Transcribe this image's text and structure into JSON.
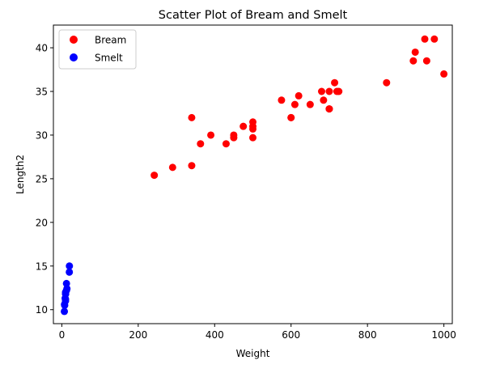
{
  "chart_data": {
    "type": "scatter",
    "title": "Scatter Plot of Bream and Smelt",
    "xlabel": "Weight",
    "ylabel": "Length2",
    "xlim": [
      -22,
      1022
    ],
    "ylim": [
      8.4,
      42.6
    ],
    "xticks": [
      0,
      200,
      400,
      600,
      800,
      1000
    ],
    "yticks": [
      10,
      15,
      20,
      25,
      30,
      35,
      40
    ],
    "grid": false,
    "legend_position": "top-left",
    "series": [
      {
        "name": "Bream",
        "color": "#ff0000",
        "points": [
          [
            242,
            25.4
          ],
          [
            290,
            26.3
          ],
          [
            340,
            26.5
          ],
          [
            363,
            29.0
          ],
          [
            430,
            29.0
          ],
          [
            450,
            29.7
          ],
          [
            500,
            29.7
          ],
          [
            390,
            30.0
          ],
          [
            450,
            30.0
          ],
          [
            500,
            30.7
          ],
          [
            475,
            31.0
          ],
          [
            500,
            31.0
          ],
          [
            500,
            31.5
          ],
          [
            340,
            32.0
          ],
          [
            600,
            32.0
          ],
          [
            600,
            32.0
          ],
          [
            700,
            33.0
          ],
          [
            700,
            33.0
          ],
          [
            610,
            33.5
          ],
          [
            650,
            33.5
          ],
          [
            575,
            34.0
          ],
          [
            685,
            34.0
          ],
          [
            620,
            34.5
          ],
          [
            680,
            35.0
          ],
          [
            700,
            35.0
          ],
          [
            725,
            35.0
          ],
          [
            720,
            35.0
          ],
          [
            714,
            36.0
          ],
          [
            850,
            36.0
          ],
          [
            1000,
            37.0
          ],
          [
            920,
            38.5
          ],
          [
            955,
            38.5
          ],
          [
            925,
            39.5
          ],
          [
            975,
            41.0
          ],
          [
            950,
            41.0
          ]
        ]
      },
      {
        "name": "Smelt",
        "color": "#0000ff",
        "points": [
          [
            6.7,
            9.8
          ],
          [
            7.5,
            10.5
          ],
          [
            7.0,
            10.6
          ],
          [
            9.7,
            11.0
          ],
          [
            9.8,
            11.2
          ],
          [
            8.7,
            11.3
          ],
          [
            10.0,
            11.8
          ],
          [
            9.9,
            11.8
          ],
          [
            9.8,
            12.0
          ],
          [
            12.2,
            12.2
          ],
          [
            13.4,
            12.4
          ],
          [
            12.2,
            13.0
          ],
          [
            19.7,
            14.3
          ],
          [
            19.9,
            15.0
          ]
        ]
      }
    ]
  }
}
